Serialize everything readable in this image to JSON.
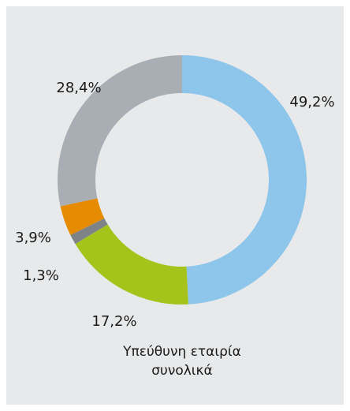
{
  "chart_data": {
    "type": "donut",
    "caption": "Υπεύθυνη εταιρία συνολικά",
    "values": [
      49.2,
      17.2,
      1.3,
      3.9,
      28.4
    ],
    "value_labels": [
      "49,2%",
      "17,2%",
      "1,3%",
      "3,9%",
      "28,4%"
    ],
    "colors": [
      "#8dc5eb",
      "#a5c31b",
      "#7e8388",
      "#e68a00",
      "#a8aeb3"
    ]
  }
}
